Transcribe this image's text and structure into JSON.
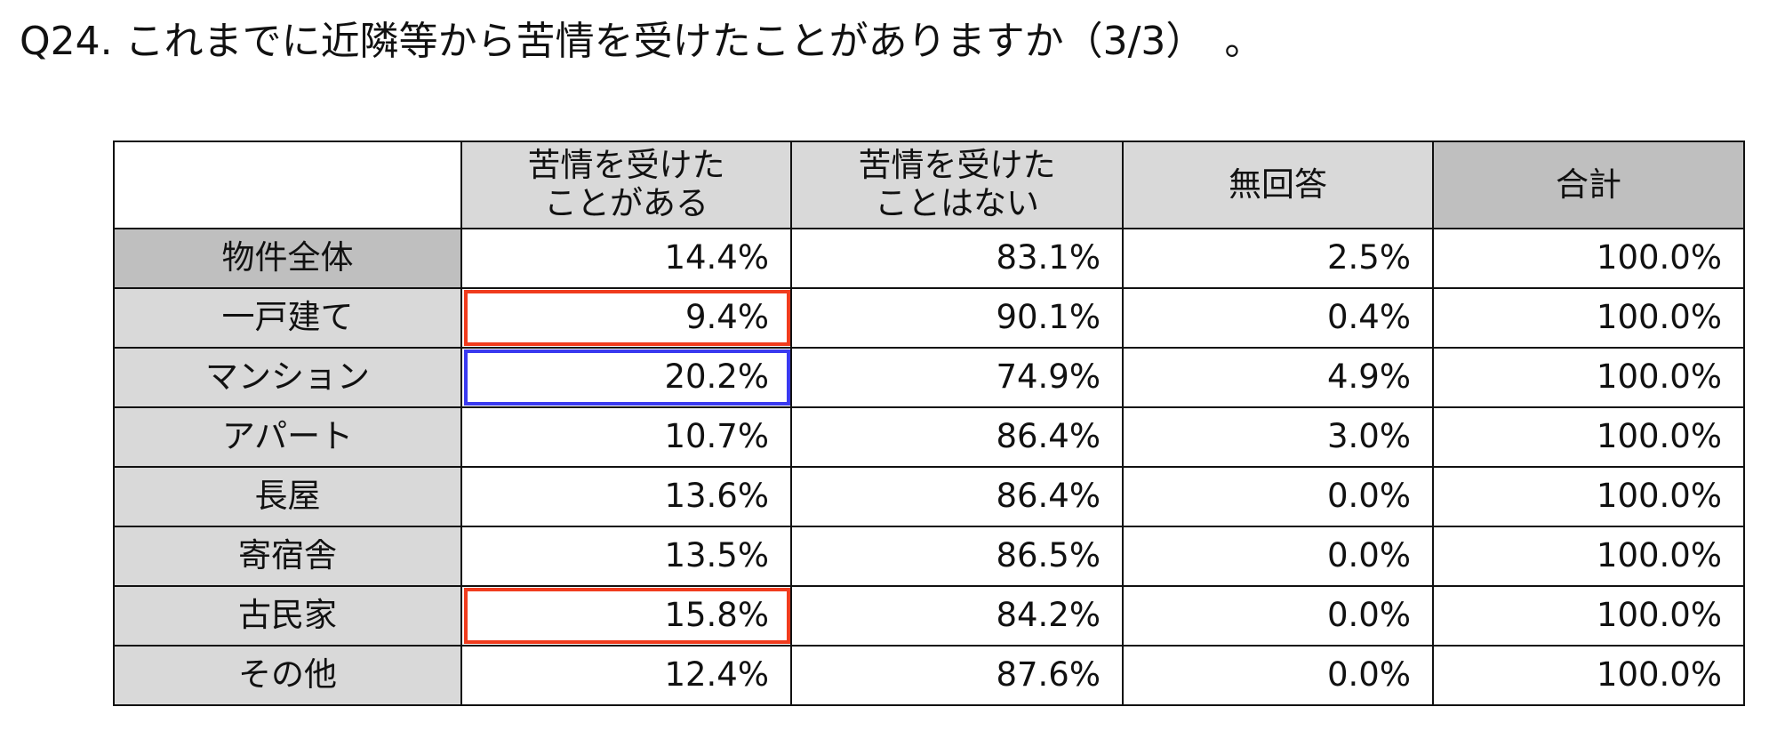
{
  "title": "Q24. これまでに近隣等から苦情を受けたことがありますか（3/3）　。",
  "table": {
    "header": [
      "",
      "苦情を受けた\nことがある",
      "苦情を受けた\nことはない",
      "無回答",
      "合計"
    ],
    "rows": [
      [
        "物件全体",
        "14.4%",
        "83.1%",
        "2.5%",
        "100.0%"
      ],
      [
        "一戸建て",
        "9.4%",
        "90.1%",
        "0.4%",
        "100.0%"
      ],
      [
        "マンション",
        "20.2%",
        "74.9%",
        "4.9%",
        "100.0%"
      ],
      [
        "アパート",
        "10.7%",
        "86.4%",
        "3.0%",
        "100.0%"
      ],
      [
        "長屋",
        "13.6%",
        "86.4%",
        "0.0%",
        "100.0%"
      ],
      [
        "寄宿舎",
        "13.5%",
        "86.5%",
        "0.0%",
        "100.0%"
      ],
      [
        "古民家",
        "15.8%",
        "84.2%",
        "0.0%",
        "100.0%"
      ],
      [
        "その他",
        "12.4%",
        "87.6%",
        "0.0%",
        "100.0%"
      ]
    ]
  }
}
